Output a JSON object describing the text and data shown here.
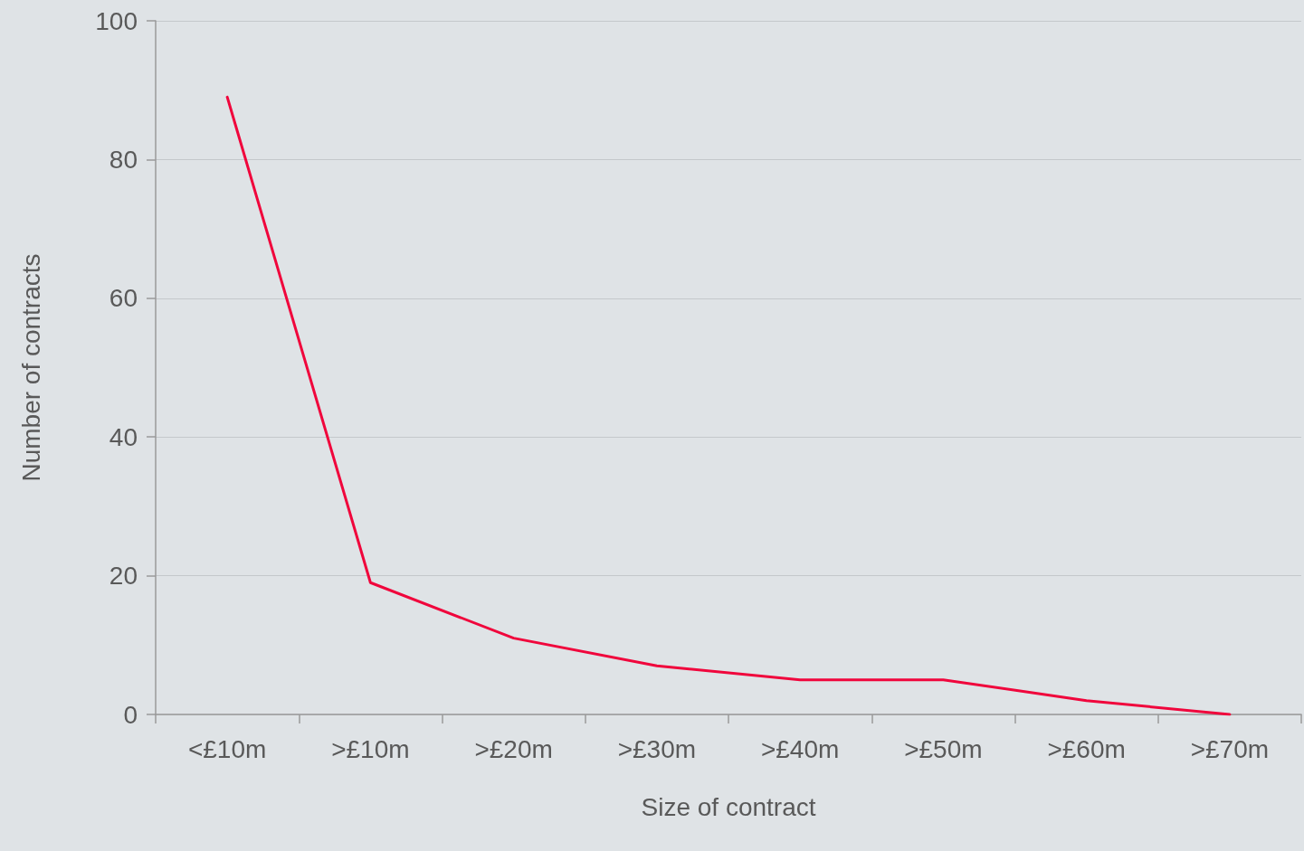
{
  "chart_data": {
    "type": "line",
    "xlabel": "Size of contract",
    "ylabel": "Number of contracts",
    "categories": [
      "<£10m",
      ">£10m",
      ">£20m",
      ">£30m",
      ">£40m",
      ">£50m",
      ">£60m",
      ">£70m"
    ],
    "series": [
      {
        "color": "#f0063c",
        "values": [
          89,
          19,
          11,
          7,
          5,
          5,
          2,
          0
        ]
      }
    ],
    "ylim": [
      0,
      100
    ],
    "yticks": [
      0,
      20,
      40,
      60,
      80,
      100
    ],
    "grid": "y",
    "marker": "none",
    "line_style": "solid"
  }
}
